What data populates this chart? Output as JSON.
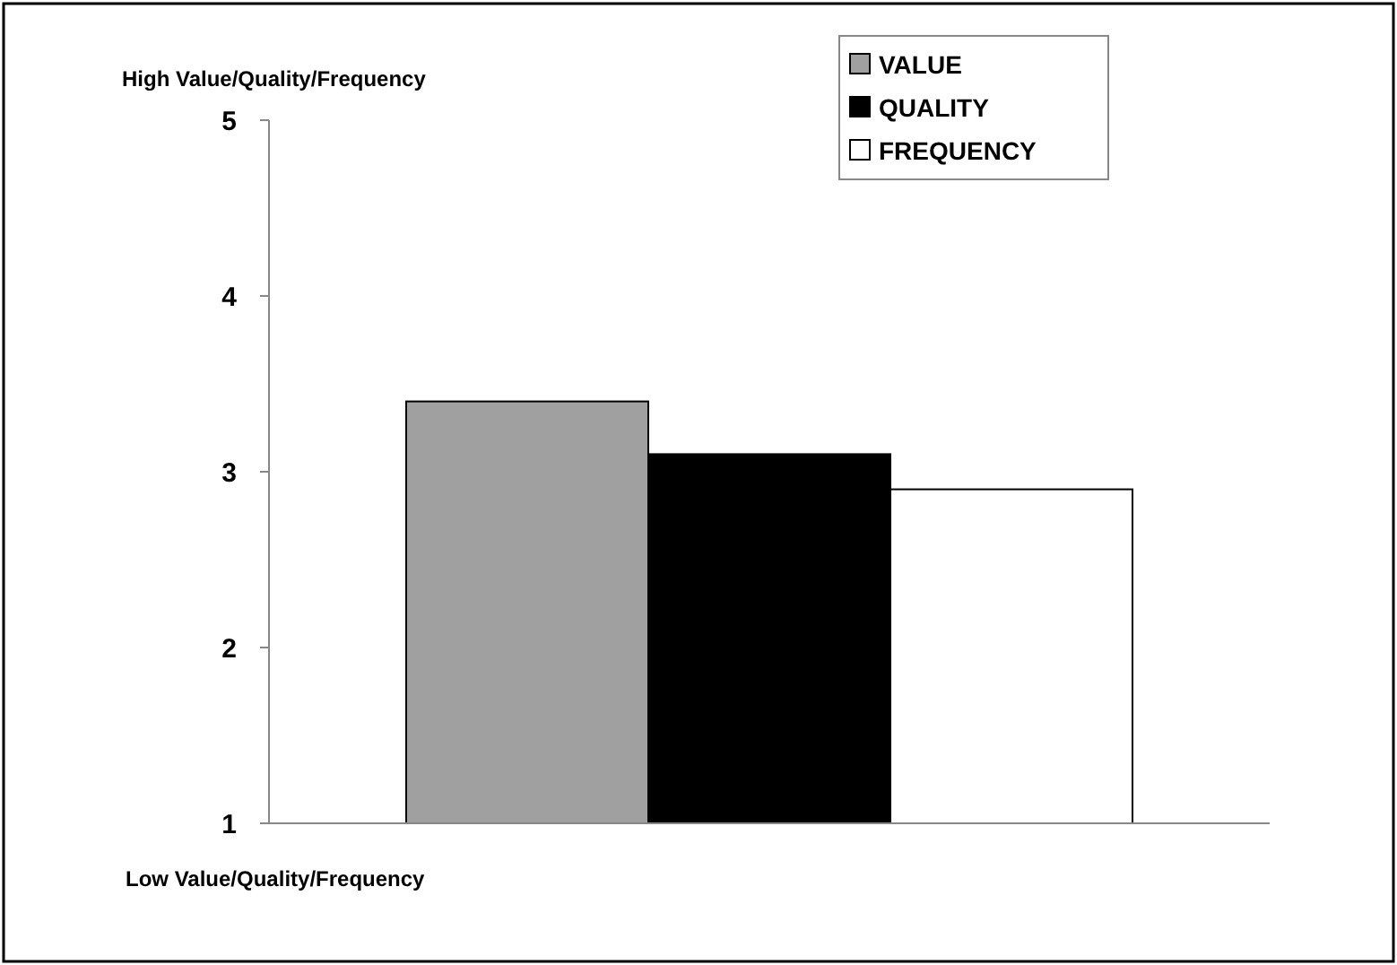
{
  "chart_data": {
    "type": "bar",
    "categories": [
      null
    ],
    "series": [
      {
        "name": "VALUE",
        "color": "#a0a0a0",
        "values": [
          3.4
        ]
      },
      {
        "name": "QUALITY",
        "color": "#000000",
        "values": [
          3.1
        ]
      },
      {
        "name": "FREQUENCY",
        "color": "#ffffff",
        "values": [
          2.9
        ]
      }
    ],
    "ylim": [
      1,
      5
    ],
    "yticks": [
      1,
      2,
      3,
      4,
      5
    ],
    "grid": false,
    "legend": "top right",
    "annotations": [
      "High Value/Quality/Frequency",
      "Low Value/Quality/Frequency"
    ]
  }
}
